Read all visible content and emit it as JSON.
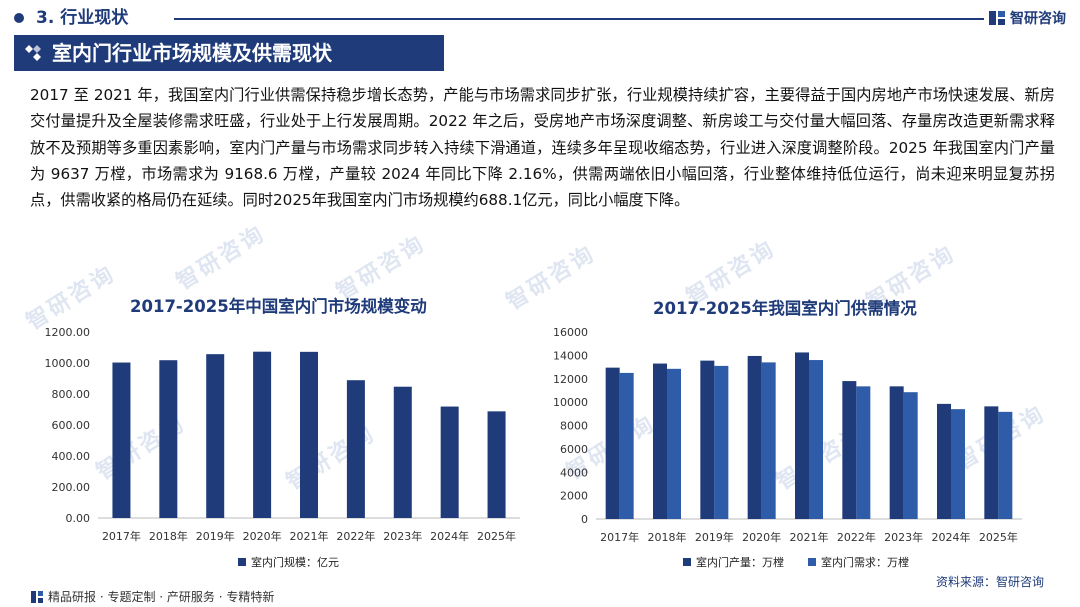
{
  "header": {
    "section_label": "3. 行业现状",
    "brand_name": "智研咨询",
    "brand_icon": "zhiyan-logo-icon",
    "accent": "#1f3b7a"
  },
  "title": "室内门行业市场规模及供需现状",
  "intro": "2017 至 2021 年，我国室内门行业供需保持稳步增长态势，产能与市场需求同步扩张，行业规模持续扩容，主要得益于国内房地产市场快速发展、新房交付量提升及全屋装修需求旺盛，行业处于上行发展周期。2022 年之后，受房地产市场深度调整、新房竣工与交付量大幅回落、存量房改造更新需求释放不及预期等多重因素影响，室内门产量与市场需求同步转入持续下滑通道，连续多年呈现收缩态势，行业进入深度调整阶段。2025 年我国室内门产量为 9637 万樘，市场需求为 9168.6 万樘，产量较 2024 年同比下降 2.16%，供需两端依旧小幅回落，行业整体维持低位运行，尚未迎来明显复苏拐点，供需收紧的格局仍在延续。同时2025年我国室内门市场规模约688.1亿元，同比小幅度下降。",
  "watermark": "智研咨询",
  "chart_data": [
    {
      "type": "bar",
      "title": "2017-2025年中国室内门市场规模变动",
      "categories": [
        "2017年",
        "2018年",
        "2019年",
        "2020年",
        "2021年",
        "2022年",
        "2023年",
        "2024年",
        "2025年"
      ],
      "series": [
        {
          "name": "室内门规模：亿元",
          "values": [
            1003,
            1018,
            1057,
            1073,
            1072,
            889,
            847,
            719,
            688.1
          ],
          "color": "#1f3b7a"
        }
      ],
      "ylim": [
        0,
        1200
      ],
      "yticks": [
        "0.00",
        "200.00",
        "400.00",
        "600.00",
        "800.00",
        "1000.00",
        "1200.00"
      ],
      "legend": "bottom",
      "grid": false
    },
    {
      "type": "bar",
      "title": "2017-2025年我国室内门供需情况",
      "categories": [
        "2017年",
        "2018年",
        "2019年",
        "2020年",
        "2021年",
        "2022年",
        "2023年",
        "2024年",
        "2025年"
      ],
      "series": [
        {
          "name": "室内门产量：万樘",
          "values": [
            12950,
            13300,
            13550,
            13950,
            14250,
            11800,
            11350,
            9850,
            9637
          ],
          "color": "#1f3b7a"
        },
        {
          "name": "室内门需求：万樘",
          "values": [
            12500,
            12850,
            13100,
            13400,
            13600,
            11350,
            10850,
            9400,
            9168.6
          ],
          "color": "#2e5ca8"
        }
      ],
      "ylim": [
        0,
        16000
      ],
      "yticks": [
        "0",
        "2000",
        "4000",
        "6000",
        "8000",
        "10000",
        "12000",
        "14000",
        "16000"
      ],
      "legend": "bottom",
      "grid": false
    }
  ],
  "footer": {
    "tagline": "精品研报 · 专题定制 · 产研服务 · 专精特新",
    "source": "资料来源：智研咨询"
  }
}
